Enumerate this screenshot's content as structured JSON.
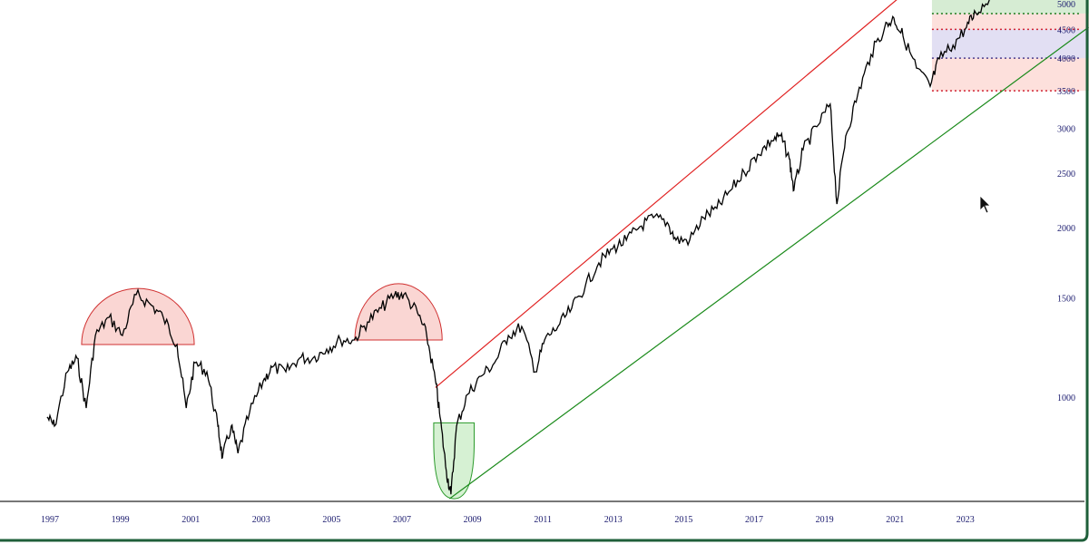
{
  "chart_data": {
    "type": "line",
    "title": "",
    "xlabel": "",
    "ylabel": "",
    "y_scale": "log",
    "xlim": [
      1996.9,
      2026.6
    ],
    "ylim": [
      653,
      5080
    ],
    "grid": false,
    "x_ticks": [
      "1997",
      "1999",
      "2001",
      "2003",
      "2005",
      "2007",
      "2009",
      "2011",
      "2013",
      "2015",
      "2017",
      "2019",
      "2021",
      "2023"
    ],
    "y_ticks": [
      "1000",
      "1500",
      "2000",
      "2500",
      "3000",
      "3500",
      "4000",
      "4500",
      "5000"
    ],
    "colors": {
      "price": "#000000",
      "resistance": "#e02020",
      "support": "#1a8a1a",
      "axis_text": "#1a1a6e",
      "frame": "#1f5f3a"
    },
    "series": [
      {
        "x": [
          1996.92,
          1997.13,
          1997.5,
          1997.77,
          1998.03,
          1998.29,
          1998.68,
          1999.06,
          1999.45,
          1999.84,
          2000.22,
          2000.61,
          2000.87,
          2001.12,
          2001.46,
          2001.77,
          2001.9,
          2002.15,
          2002.34,
          2002.67,
          2003.06,
          2003.31,
          2003.7,
          2004.09,
          2004.47,
          2004.86,
          2005.25,
          2005.64,
          2006.02,
          2006.41,
          2006.79,
          2007.05,
          2007.44,
          2007.7,
          2007.95,
          2008.08,
          2008.26,
          2008.39,
          2008.55,
          2008.86,
          2009.24,
          2009.63,
          2010.02,
          2010.4,
          2010.79,
          2011.05,
          2011.43,
          2011.82,
          2012.21,
          2012.59,
          2012.98,
          2013.37,
          2013.75,
          2014.14,
          2014.53,
          2014.78,
          2015.17,
          2015.56,
          2015.94,
          2016.33,
          2016.72,
          2017.1,
          2017.49,
          2017.75,
          2018.0,
          2018.13,
          2018.39,
          2018.78,
          2019.16,
          2019.35,
          2019.6,
          2019.94,
          2020.32,
          2020.71,
          2020.97,
          2021.23,
          2021.61,
          2022.0,
          2022.26,
          2022.65,
          2023.03,
          2023.29,
          2023.68
        ],
        "y": [
          922,
          888,
          1109,
          1173,
          956,
          1287,
          1386,
          1287,
          1521,
          1465,
          1386,
          1240,
          956,
          1151,
          1109,
          888,
          780,
          888,
          795,
          939,
          1069,
          1130,
          1109,
          1173,
          1173,
          1217,
          1263,
          1263,
          1360,
          1438,
          1521,
          1521,
          1412,
          1287,
          1069,
          922,
          738,
          672,
          888,
          1011,
          1089,
          1151,
          1287,
          1335,
          1109,
          1263,
          1335,
          1438,
          1578,
          1731,
          1833,
          1900,
          2007,
          2084,
          2043,
          1900,
          1900,
          2084,
          2163,
          2329,
          2507,
          2700,
          2855,
          2909,
          2650,
          2329,
          2750,
          3021,
          3315,
          2203,
          2909,
          3442,
          4061,
          4540,
          4713,
          4375,
          3841,
          3565,
          3989,
          4218,
          4540,
          4816,
          5080
        ]
      }
    ],
    "annotations": {
      "rounding_tops": [
        {
          "center_x": 1999.5,
          "base": 1240,
          "peak": 1560,
          "half_width_years": 1.6
        },
        {
          "center_x": 2006.9,
          "base": 1263,
          "peak": 1590,
          "half_width_years": 1.24
        }
      ],
      "rounding_bottom": {
        "x_range": [
          2007.9,
          2009.05
        ],
        "top": 900,
        "bottom": 660
      },
      "resistance_line": {
        "from": [
          2007.95,
          1040
        ],
        "to": [
          2021.05,
          5080
        ]
      },
      "support_line": {
        "from": [
          2008.35,
          660
        ],
        "to": [
          2026.5,
          4540
        ]
      },
      "zones": {
        "start_x": 2022.05,
        "green": [
          4800,
          5080
        ],
        "red": [
          3500,
          4800
        ],
        "purple": [
          4000,
          4500
        ],
        "levels": [
          3500,
          4000,
          4500,
          4800
        ]
      }
    }
  }
}
